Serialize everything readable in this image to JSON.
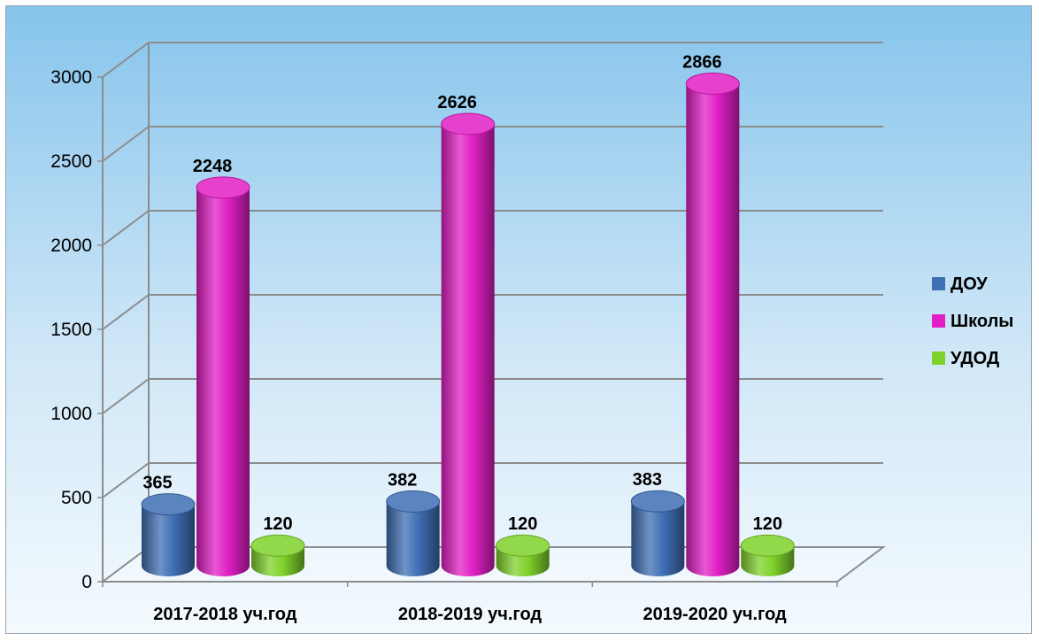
{
  "chart_data": {
    "type": "bar",
    "title": "",
    "xlabel": "",
    "ylabel": "",
    "categories": [
      "2017-2018 уч.год",
      "2018-2019 уч.год",
      "2019-2020 уч.год"
    ],
    "series": [
      {
        "name": "ДОУ",
        "values": [
          365,
          382,
          383
        ],
        "color": "#3f6fb4"
      },
      {
        "name": "Школы",
        "values": [
          2248,
          2626,
          2866
        ],
        "color": "#e11fc4"
      },
      {
        "name": "УДОД",
        "values": [
          120,
          120,
          120
        ],
        "color": "#7fd12b"
      }
    ],
    "ylim": [
      0,
      3000
    ],
    "yticks": [
      "0",
      "500",
      "1000",
      "1500",
      "2000",
      "2500",
      "3000"
    ],
    "grid": true,
    "legend_position": "right",
    "style": "3d cylinders",
    "background": "#8ec8ee"
  }
}
